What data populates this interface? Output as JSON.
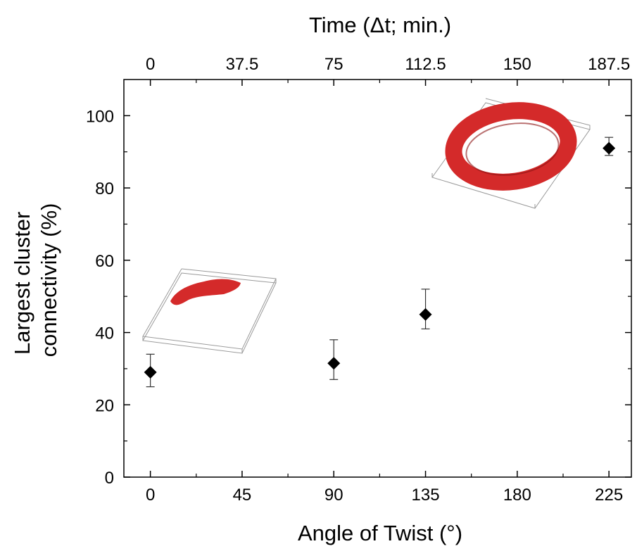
{
  "chart_data": {
    "type": "scatter",
    "title": "",
    "xlabel": "Angle of Twist (°)",
    "ylabel": [
      "Largest cluster",
      "connectivity (%)"
    ],
    "x2label": "Time (Δt; min.)",
    "xlim": [
      -13,
      236
    ],
    "ylim": [
      0,
      110
    ],
    "xticks": [
      0,
      45,
      90,
      135,
      180,
      225
    ],
    "xtick_labels": [
      "0",
      "45",
      "90",
      "135",
      "180",
      "225"
    ],
    "yticks": [
      0,
      20,
      40,
      60,
      80,
      100
    ],
    "ytick_labels": [
      "0",
      "20",
      "40",
      "60",
      "80",
      "100"
    ],
    "x2ticks": [
      0,
      45,
      90,
      135,
      180,
      225
    ],
    "x2tick_labels": [
      "0",
      "37.5",
      "75",
      "112.5",
      "150",
      "187.5"
    ],
    "grid": false,
    "marker": "diamond",
    "marker_color": "#000000",
    "inset_color": "#d42a2a",
    "series": [
      {
        "x": [
          0,
          90,
          135,
          225
        ],
        "y": [
          29,
          31.5,
          45,
          91
        ],
        "err_low": [
          25,
          27,
          41,
          89
        ],
        "err_high": [
          34,
          38,
          52,
          94
        ]
      }
    ]
  }
}
